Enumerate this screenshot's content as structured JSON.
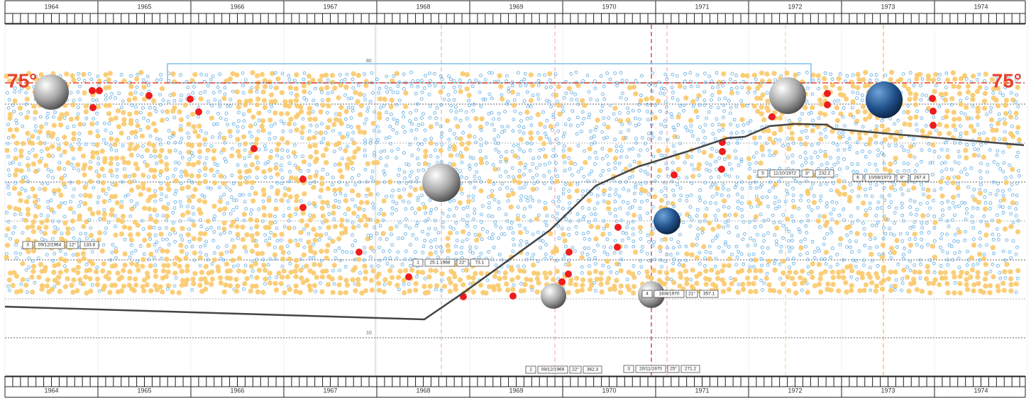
{
  "top_axis": {
    "years": [
      "1964",
      "1965",
      "1966",
      "1967",
      "1968",
      "1969",
      "1970",
      "1971",
      "1972",
      "1973",
      "1974"
    ]
  },
  "bottom_axis": {
    "years": [
      "1964",
      "1965",
      "1966",
      "1967",
      "1968",
      "1969",
      "1970",
      "1971",
      "1972",
      "1973",
      "1974"
    ]
  },
  "side_labels": {
    "left": "75°",
    "right": "75°"
  },
  "scale_labels": [
    "80",
    "10"
  ],
  "tags": [
    {
      "cells": [
        "3",
        "09/12/1964",
        "12°",
        "133.8"
      ]
    },
    {
      "cells": [
        "1",
        "25.1.1968",
        "22°",
        "73.1"
      ]
    },
    {
      "cells": [
        "4",
        "16/8/1970",
        "21°",
        "357.1"
      ]
    },
    {
      "cells": [
        "5",
        "11/10/1972",
        "3°",
        "232.2"
      ]
    },
    {
      "cells": [
        "6",
        "10/08/1973",
        "8°",
        "267.4"
      ]
    },
    {
      "cells": [
        "2",
        "09/12/1969",
        "22°",
        "362.3"
      ]
    },
    {
      "cells": [
        "3",
        "20/11/1970",
        "25°",
        "271.2"
      ]
    }
  ]
}
